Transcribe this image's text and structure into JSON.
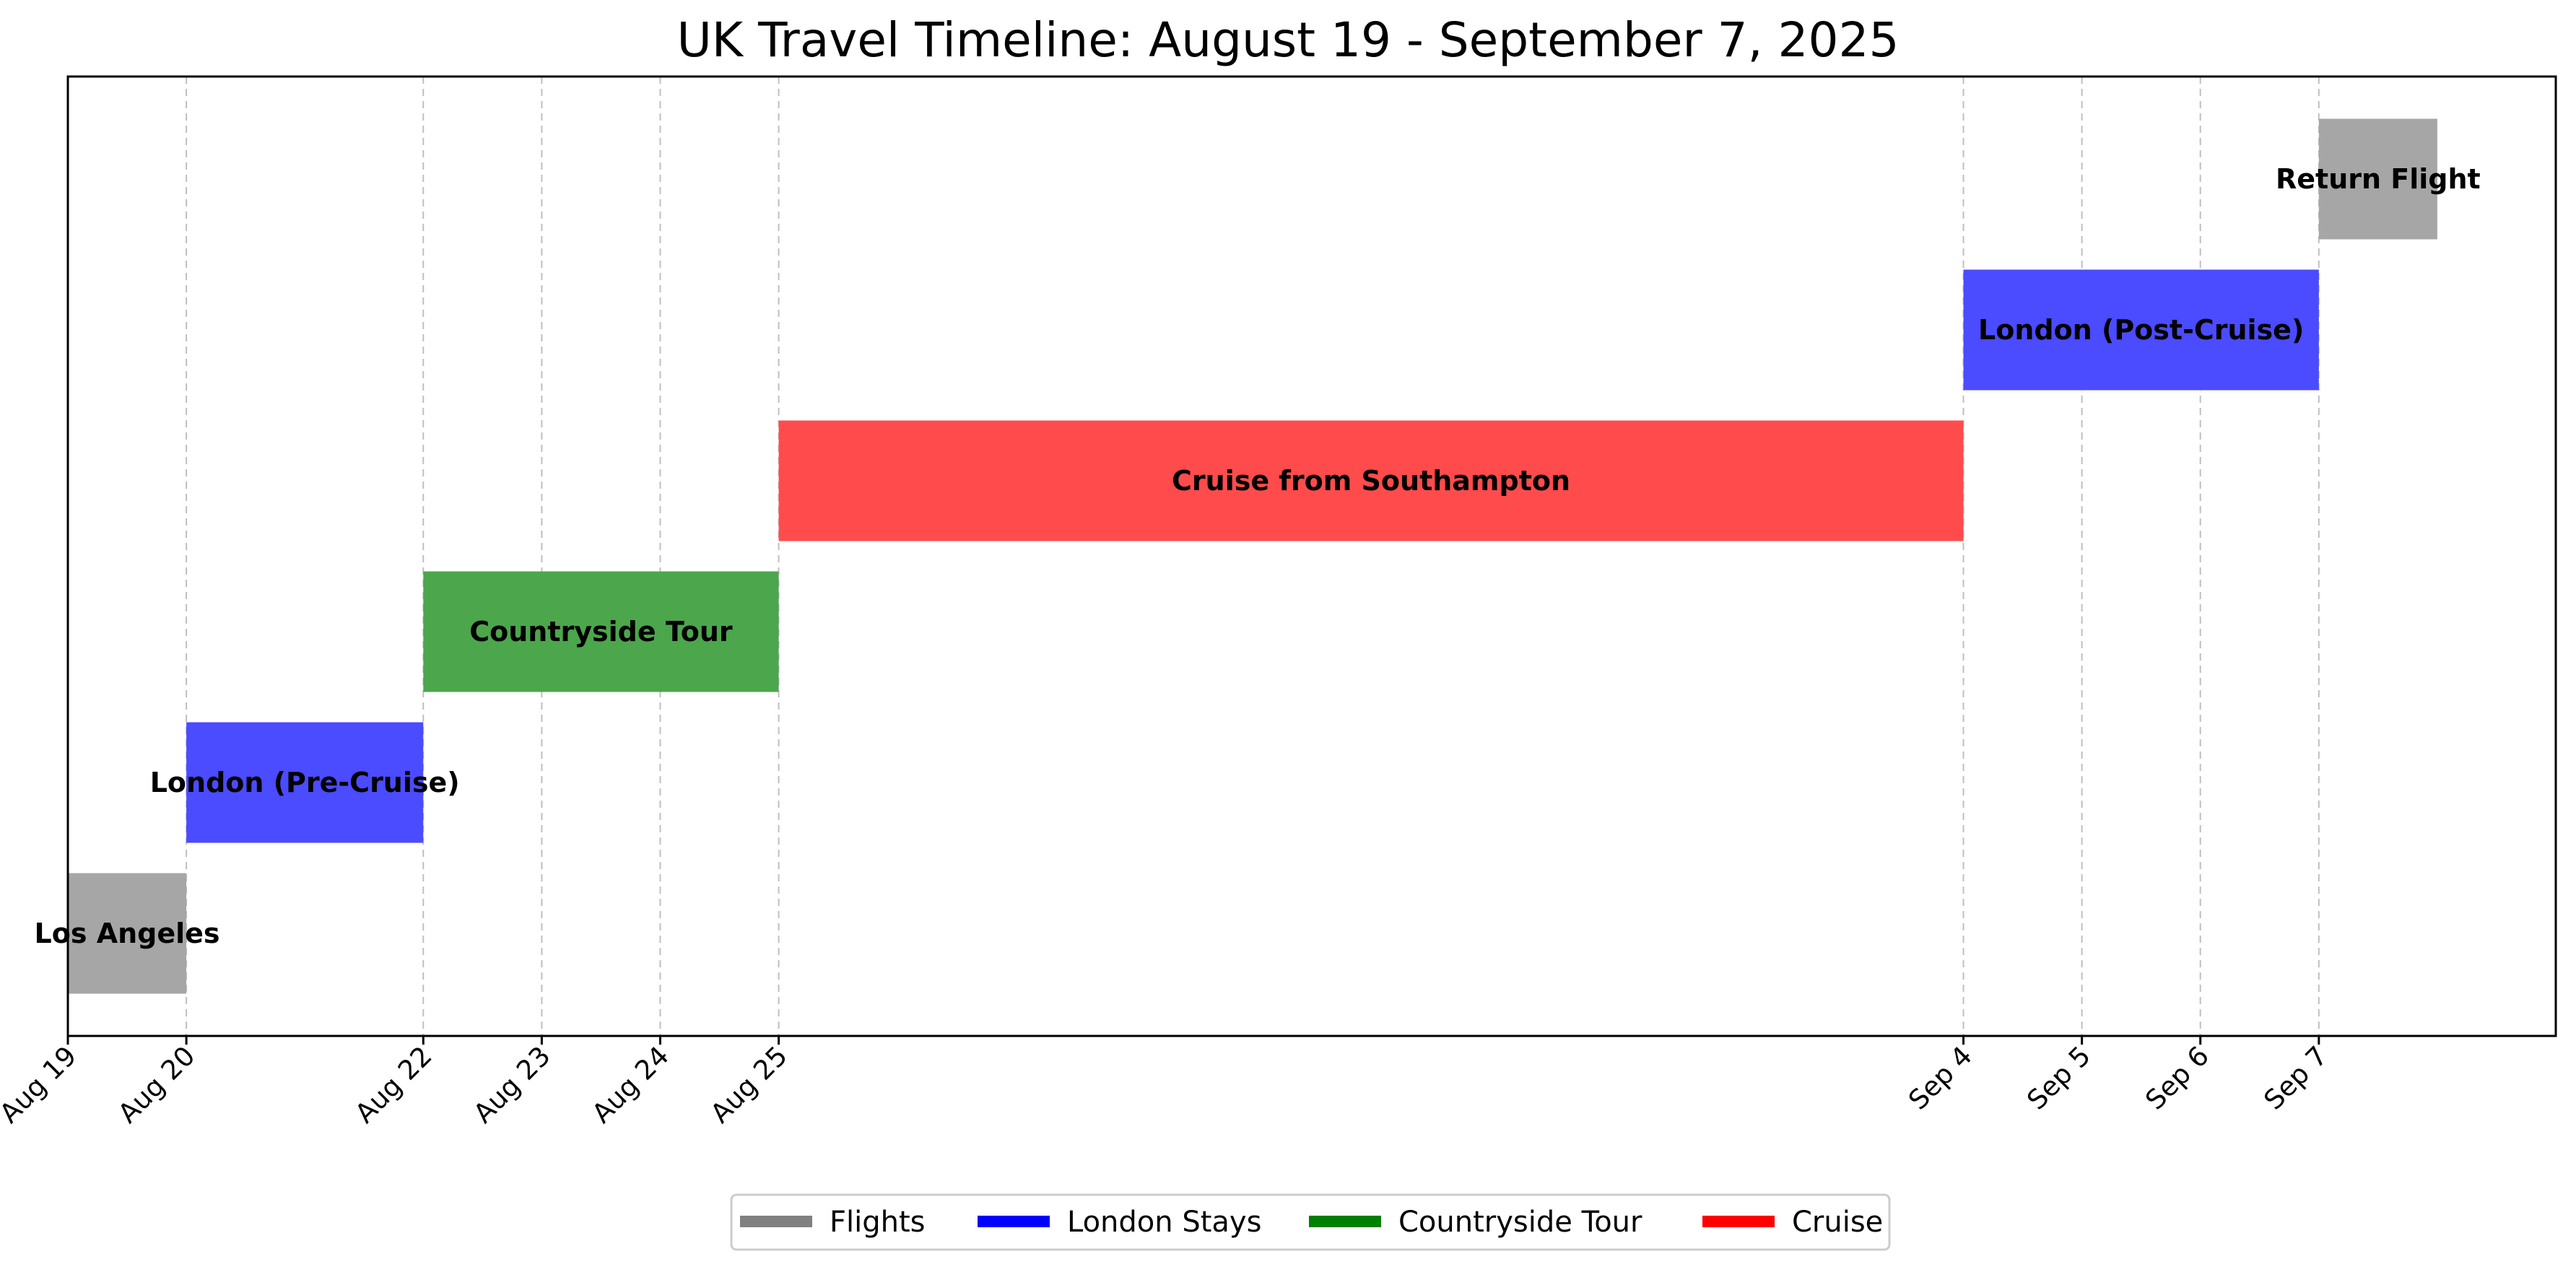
{
  "chart_data": {
    "type": "gantt",
    "title": "UK Travel Timeline: August 19 - September 7, 2025",
    "xlabel": "",
    "ylabel": "",
    "xlim": [
      "2025-08-19",
      "2025-09-09"
    ],
    "grid": "x-dashed",
    "legend_placement": "bottom-center",
    "ticks": [
      {
        "date": "2025-08-19",
        "label": "Aug 19"
      },
      {
        "date": "2025-08-20",
        "label": "Aug 20"
      },
      {
        "date": "2025-08-22",
        "label": "Aug 22"
      },
      {
        "date": "2025-08-23",
        "label": "Aug 23"
      },
      {
        "date": "2025-08-24",
        "label": "Aug 24"
      },
      {
        "date": "2025-08-25",
        "label": "Aug 25"
      },
      {
        "date": "2025-09-04",
        "label": "Sep 4"
      },
      {
        "date": "2025-09-05",
        "label": "Sep 5"
      },
      {
        "date": "2025-09-06",
        "label": "Sep 6"
      },
      {
        "date": "2025-09-07",
        "label": "Sep 7"
      }
    ],
    "events": [
      {
        "label": "Los Angeles",
        "start": "2025-08-19",
        "end": "2025-08-20",
        "category": "Flights",
        "color": "#a6a6a6"
      },
      {
        "label": "London (Pre-Cruise)",
        "start": "2025-08-20",
        "end": "2025-08-22",
        "category": "London Stays",
        "color": "#4b4bff"
      },
      {
        "label": "Countryside Tour",
        "start": "2025-08-22",
        "end": "2025-08-25",
        "category": "Countryside Tour",
        "color": "#4ca64c"
      },
      {
        "label": "Cruise from Southampton",
        "start": "2025-08-25",
        "end": "2025-09-04",
        "category": "Cruise",
        "color": "#ff4b4b"
      },
      {
        "label": "London (Post-Cruise)",
        "start": "2025-09-04",
        "end": "2025-09-07",
        "category": "London Stays",
        "color": "#4b4bff"
      },
      {
        "label": "Return Flight",
        "start": "2025-09-07",
        "end": "2025-09-08",
        "category": "Flights",
        "color": "#a6a6a6"
      }
    ],
    "legend": [
      {
        "name": "Flights",
        "color": "#808080"
      },
      {
        "name": "London Stays",
        "color": "#0000ff"
      },
      {
        "name": "Countryside Tour",
        "color": "#008000"
      },
      {
        "name": "Cruise",
        "color": "#ff0000"
      }
    ]
  }
}
